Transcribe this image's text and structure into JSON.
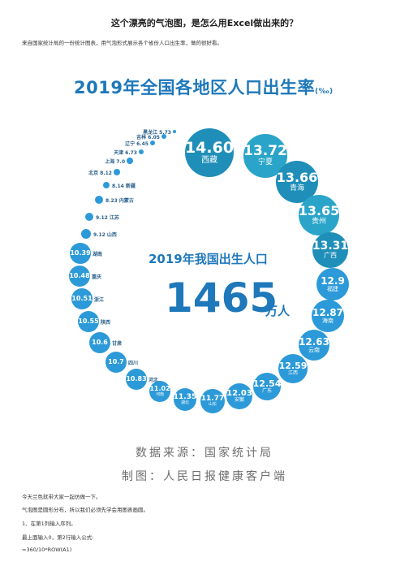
{
  "doc": {
    "title": "这个漂亮的气泡图，是怎么用Excel做出来的？",
    "intro": "来自国家统计局的一份统计图表，用气泡形式展示各个省份人口出生率，做的很好看。"
  },
  "infographic": {
    "title": "2019年全国各地区人口出生率",
    "title_unit": "(‰)",
    "center_title": "2019年我国出生人口",
    "center_number": "1465",
    "center_unit": "万人",
    "colors": {
      "dark": "#1f8fb9",
      "mid": "#2aa5c9",
      "light": "#2c9ad8",
      "text": "#1e78ba"
    },
    "bubbles": [
      {
        "value": "14.60",
        "province": "西藏"
      },
      {
        "value": "13.72",
        "province": "宁夏"
      },
      {
        "value": "13.66",
        "province": "青海"
      },
      {
        "value": "13.65",
        "province": "贵州"
      },
      {
        "value": "13.31",
        "province": "广西"
      },
      {
        "value": "12.9",
        "province": "福建"
      },
      {
        "value": "12.87",
        "province": "海南"
      },
      {
        "value": "12.63",
        "province": "云南"
      },
      {
        "value": "12.59",
        "province": "江西"
      },
      {
        "value": "12.54",
        "province": "广东"
      },
      {
        "value": "12.03",
        "province": "安徽"
      },
      {
        "value": "11.77",
        "province": "山东"
      },
      {
        "value": "11.35",
        "province": "湖北"
      },
      {
        "value": "11.02",
        "province": "河南"
      },
      {
        "value": "10.83",
        "province": "河北"
      },
      {
        "value": "10.7",
        "province": "四川"
      },
      {
        "value": "10.6",
        "province": "甘肃"
      },
      {
        "value": "10.55",
        "province": "陕西"
      },
      {
        "value": "10.51",
        "province": "浙江"
      },
      {
        "value": "10.48",
        "province": "重庆"
      },
      {
        "value": "10.39",
        "province": "湖南"
      }
    ],
    "small_labels": [
      {
        "text": "9.12 山西"
      },
      {
        "text": "9.12 江苏"
      },
      {
        "text": "8.23 内蒙古"
      },
      {
        "text": "8.14 新疆"
      },
      {
        "text": "北京 8.12"
      },
      {
        "text": "上海 7.0"
      },
      {
        "text": "天津 6.73"
      },
      {
        "text": "辽宁 6.45"
      },
      {
        "text": "吉林 6.05"
      },
      {
        "text": "黑龙江 5.73"
      }
    ]
  },
  "source": {
    "line1": "数据来源：国家统计局",
    "line2": "制图：人民日报健康客户端"
  },
  "body": {
    "p1": "今天兰色就带大家一起仿做一下。",
    "p2": "气泡图是圆形分布，所以我们必须先学会用图表画圆。",
    "p3": "1、在第1列输入序列。",
    "p4": "最上面输入0，第2行输入公式:",
    "p5": "=360/10*ROW(A1)"
  }
}
